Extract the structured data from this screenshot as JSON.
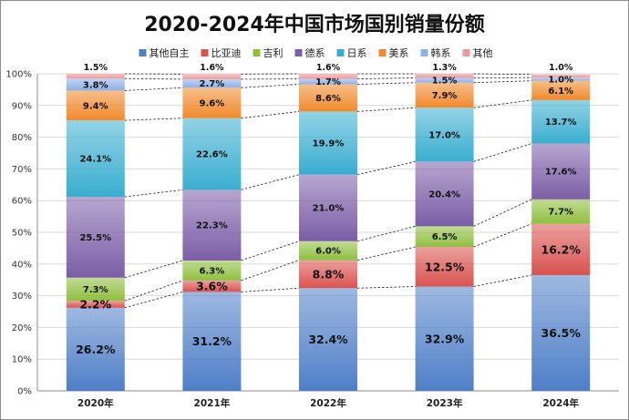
{
  "chart_data": {
    "type": "bar",
    "stacked": true,
    "percent": true,
    "title": "2020-2024年中国市场国别销量份额",
    "xlabel": "",
    "ylabel": "",
    "ylim": [
      0,
      100
    ],
    "yticks": [
      "0%",
      "10%",
      "20%",
      "30%",
      "40%",
      "50%",
      "60%",
      "70%",
      "80%",
      "90%",
      "100%"
    ],
    "categories": [
      "2020年",
      "2021年",
      "2022年",
      "2023年",
      "2024年"
    ],
    "legend_position": "top",
    "series": [
      {
        "name": "其他自主",
        "color": "#4f7fc8",
        "values": [
          26.2,
          31.2,
          32.4,
          32.9,
          36.5
        ],
        "labels": [
          "26.2%",
          "31.2%",
          "32.4%",
          "32.9%",
          "36.5%"
        ]
      },
      {
        "name": "比亚迪",
        "color": "#d9534f",
        "values": [
          2.2,
          3.6,
          8.8,
          12.5,
          16.2
        ],
        "labels": [
          "2.2%",
          "3.6%",
          "8.8%",
          "12.5%",
          "16.2%"
        ]
      },
      {
        "name": "吉利",
        "color": "#8fbf3f",
        "values": [
          7.3,
          6.3,
          6.0,
          6.5,
          7.7
        ],
        "labels": [
          "7.3%",
          "6.3%",
          "6.0%",
          "6.5%",
          "7.7%"
        ]
      },
      {
        "name": "德系",
        "color": "#7b5ea7",
        "values": [
          25.5,
          22.3,
          21.0,
          20.4,
          17.6
        ],
        "labels": [
          "25.5%",
          "22.3%",
          "21.0%",
          "20.4%",
          "17.6%"
        ]
      },
      {
        "name": "日系",
        "color": "#3aaed0",
        "values": [
          24.1,
          22.6,
          19.9,
          17.0,
          13.7
        ],
        "labels": [
          "24.1%",
          "22.6%",
          "19.9%",
          "17.0%",
          "13.7%"
        ]
      },
      {
        "name": "美系",
        "color": "#f08a2c",
        "values": [
          9.4,
          9.6,
          8.6,
          7.9,
          6.1
        ],
        "labels": [
          "9.4%",
          "9.6%",
          "8.6%",
          "7.9%",
          "6.1%"
        ]
      },
      {
        "name": "韩系",
        "color": "#8fb0e8",
        "values": [
          3.8,
          2.7,
          1.7,
          1.5,
          1.0
        ],
        "labels": [
          "3.8%",
          "2.7%",
          "1.7%",
          "1.5%",
          "1.0%"
        ]
      },
      {
        "name": "其他",
        "color": "#ee9a9a",
        "values": [
          1.5,
          1.6,
          1.6,
          1.3,
          1.0
        ],
        "labels": [
          "1.5%",
          "1.6%",
          "1.6%",
          "1.3%",
          "1.0%"
        ]
      }
    ]
  }
}
